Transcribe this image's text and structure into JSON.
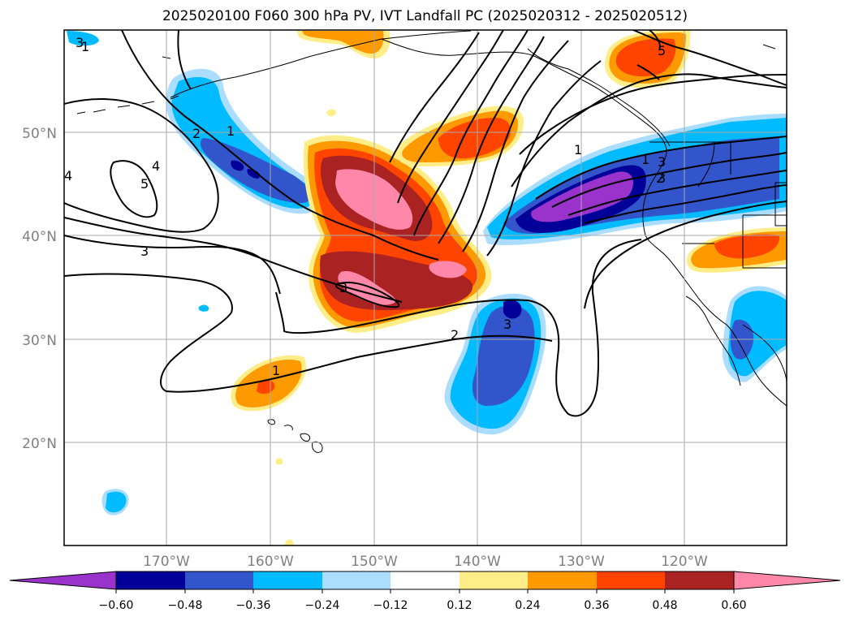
{
  "title": "2025020100 F060 300 hPa PV, IVT Landfall PC (2025020312 - 2025020512)",
  "map": {
    "lon_labels": [
      "170°W",
      "160°W",
      "150°W",
      "140°W",
      "130°W",
      "120°W"
    ],
    "lat_labels": [
      "50°N",
      "40°N",
      "30°N",
      "20°N"
    ],
    "contour_labels": [
      "1",
      "2",
      "4",
      "5",
      "3",
      "2",
      "1",
      "3",
      "3",
      "2",
      "1",
      "1",
      "3",
      "3",
      "5",
      "4",
      "3",
      "1"
    ]
  },
  "colorbar": {
    "ticks": [
      "−0.60",
      "−0.48",
      "−0.36",
      "−0.24",
      "−0.12",
      "0.12",
      "0.24",
      "0.36",
      "0.48",
      "0.60"
    ],
    "colors": [
      "#9933cc",
      "#000099",
      "#3355cc",
      "#00bbff",
      "#aaddff",
      "#ffffff",
      "#ffee88",
      "#ff9900",
      "#ff4400",
      "#aa2222",
      "#ff88aa"
    ]
  }
}
